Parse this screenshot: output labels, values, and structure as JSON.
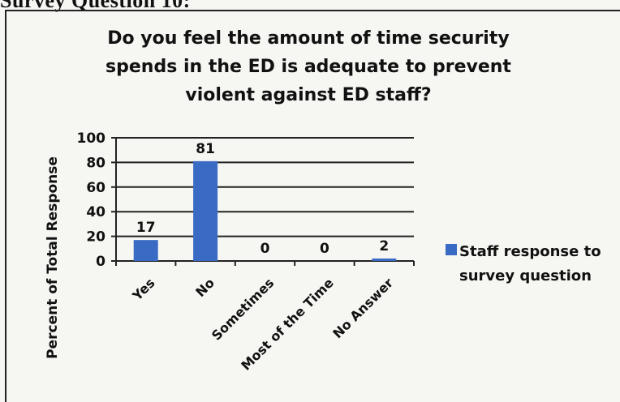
{
  "page_header": "Survey Question 10:",
  "chart_data": {
    "type": "bar",
    "title": "Do you feel the amount of time security spends in the ED is adequate to prevent violent against ED staff?",
    "categories": [
      "Yes",
      "No",
      "Sometimes",
      "Most of the Time",
      "No Answer"
    ],
    "series": [
      {
        "name": "Staff response to survey question",
        "values": [
          17,
          81,
          0,
          0,
          2
        ]
      }
    ],
    "data_labels": [
      "17",
      "81",
      "0",
      "0",
      "2"
    ],
    "xlabel": "",
    "ylabel": "Percent of Total Response",
    "ylim": [
      0,
      100
    ],
    "yticks": [
      0,
      20,
      40,
      60,
      80,
      100
    ],
    "grid": true,
    "legend_position": "right",
    "bar_color": "#3a6bc4"
  }
}
